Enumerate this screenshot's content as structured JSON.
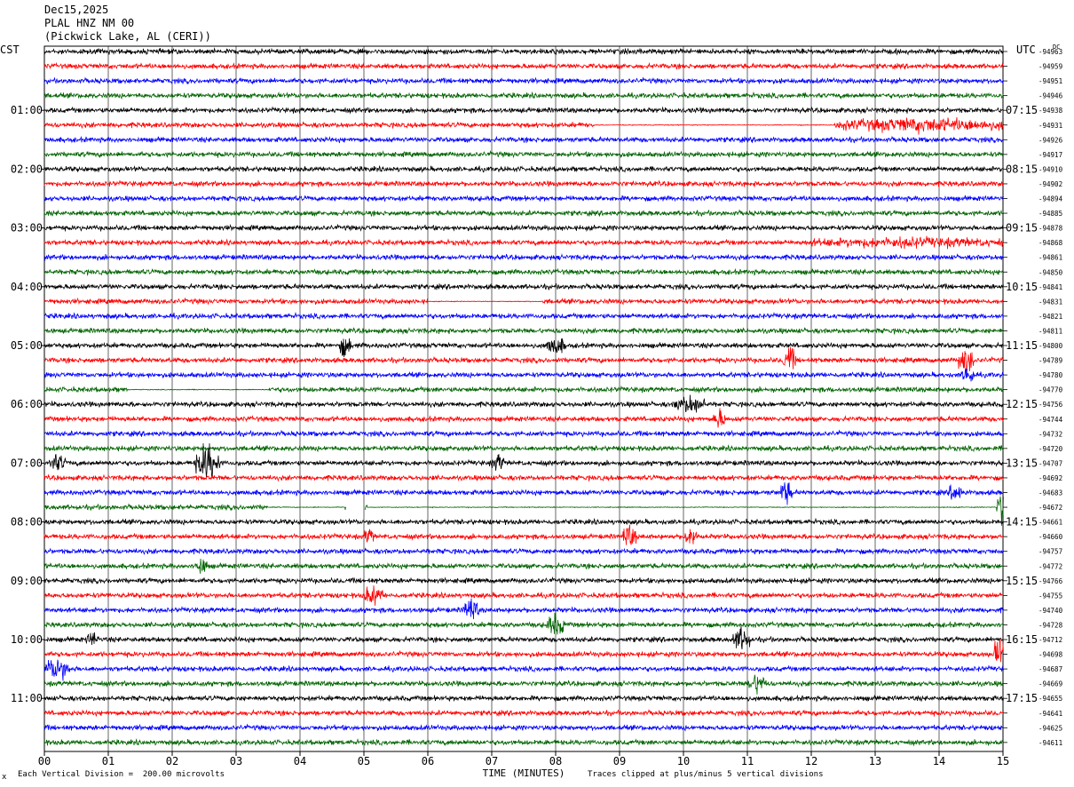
{
  "header": {
    "date": "Dec15,2025",
    "station": "PLAL HNZ NM 00",
    "location": "(Pickwick Lake, AL (CERI))"
  },
  "left_zone": "CST",
  "right_zone": "UTC",
  "dc_label": "DC",
  "footer": {
    "scale_note": "Each Vertical Division =  200.00 microvolts",
    "clip_note": "Traces clipped at plus/minus 5 vertical divisions",
    "corner_mark": "x"
  },
  "chart_data": {
    "type": "line",
    "title": "",
    "xlabel": "TIME (MINUTES)",
    "ylabel": "",
    "xlim": [
      0,
      15
    ],
    "x_ticks": [
      "00",
      "01",
      "02",
      "03",
      "04",
      "05",
      "06",
      "07",
      "08",
      "09",
      "10",
      "11",
      "12",
      "13",
      "14",
      "15"
    ],
    "rows_per_hour": 4,
    "trace_colors": [
      "#000000",
      "#ff0000",
      "#0000ff",
      "#006400"
    ],
    "left_time_labels": [
      "01:00",
      "02:00",
      "03:00",
      "04:00",
      "05:00",
      "06:00",
      "07:00",
      "08:00",
      "09:00",
      "10:00",
      "11:00"
    ],
    "right_time_labels": [
      "07:15",
      "08:15",
      "09:15",
      "10:15",
      "11:15",
      "12:15",
      "13:15",
      "14:15",
      "15:15",
      "16:15",
      "17:15"
    ],
    "dc_offsets": [
      "-94963",
      "-94959",
      "-94951",
      "-94946",
      "-94938",
      "-94931",
      "-94926",
      "-94917",
      "-94910",
      "-94902",
      "-94894",
      "-94885",
      "-94878",
      "-94868",
      "-94861",
      "-94850",
      "-94841",
      "-94831",
      "-94821",
      "-94811",
      "-94800",
      "-94789",
      "-94780",
      "-94770",
      "-94756",
      "-94744",
      "-94732",
      "-94720",
      "-94707",
      "-94692",
      "-94683",
      "-94672",
      "-94661",
      "-94660",
      "-94757",
      "-94772",
      "-94766",
      "-94755",
      "-94740",
      "-94728",
      "-94712",
      "-94698",
      "-94687",
      "-94669",
      "-94655",
      "-94641",
      "-94625",
      "-94611"
    ],
    "events": [
      {
        "row": 5,
        "minute": 12.4,
        "width": 2.6,
        "amp": 5
      },
      {
        "row": 13,
        "minute": 12.0,
        "width": 3.0,
        "amp": 3
      },
      {
        "row": 20,
        "minute": 4.65,
        "width": 0.1,
        "amp": 9
      },
      {
        "row": 20,
        "minute": 7.9,
        "width": 0.2,
        "amp": 8
      },
      {
        "row": 21,
        "minute": 11.6,
        "width": 0.1,
        "amp": 11
      },
      {
        "row": 21,
        "minute": 14.35,
        "width": 0.15,
        "amp": 12
      },
      {
        "row": 22,
        "minute": 14.4,
        "width": 0.1,
        "amp": 8
      },
      {
        "row": 24,
        "minute": 9.9,
        "width": 0.4,
        "amp": 7
      },
      {
        "row": 25,
        "minute": 10.5,
        "width": 0.1,
        "amp": 8
      },
      {
        "row": 28,
        "minute": 2.4,
        "width": 0.3,
        "amp": 16
      },
      {
        "row": 28,
        "minute": 0.1,
        "width": 0.2,
        "amp": 7
      },
      {
        "row": 28,
        "minute": 7.05,
        "width": 0.1,
        "amp": 7
      },
      {
        "row": 30,
        "minute": 11.55,
        "width": 0.1,
        "amp": 10
      },
      {
        "row": 30,
        "minute": 14.2,
        "width": 0.1,
        "amp": 8
      },
      {
        "row": 31,
        "minute": 14.95,
        "width": 0.05,
        "amp": 14
      },
      {
        "row": 33,
        "minute": 9.1,
        "width": 0.1,
        "amp": 10
      },
      {
        "row": 33,
        "minute": 10.05,
        "width": 0.1,
        "amp": 9
      },
      {
        "row": 33,
        "minute": 5.05,
        "width": 0.05,
        "amp": 7
      },
      {
        "row": 35,
        "minute": 2.4,
        "width": 0.1,
        "amp": 7
      },
      {
        "row": 37,
        "minute": 5.05,
        "width": 0.2,
        "amp": 8
      },
      {
        "row": 38,
        "minute": 6.6,
        "width": 0.15,
        "amp": 9
      },
      {
        "row": 39,
        "minute": 7.9,
        "width": 0.2,
        "amp": 9
      },
      {
        "row": 40,
        "minute": 10.8,
        "width": 0.2,
        "amp": 10
      },
      {
        "row": 40,
        "minute": 0.7,
        "width": 0.1,
        "amp": 5
      },
      {
        "row": 41,
        "minute": 14.9,
        "width": 0.1,
        "amp": 16
      },
      {
        "row": 42,
        "minute": 0.05,
        "width": 0.3,
        "amp": 10
      },
      {
        "row": 43,
        "minute": 11.05,
        "width": 0.2,
        "amp": 8
      }
    ],
    "flat_segments": [
      {
        "row": 5,
        "from": 8.6,
        "to": 12.4
      },
      {
        "row": 17,
        "from": 6.0,
        "to": 7.8
      },
      {
        "row": 23,
        "from": 1.3,
        "to": 3.5
      },
      {
        "row": 31,
        "from": 3.5,
        "to": 4.7
      },
      {
        "row": 31,
        "from": 5.05,
        "to": 14.9
      }
    ],
    "gaps": [
      {
        "row": 31,
        "from": 4.72,
        "to": 5.0
      }
    ]
  }
}
